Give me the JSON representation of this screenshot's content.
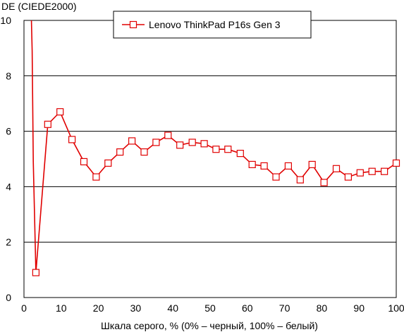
{
  "chart_data": {
    "type": "line",
    "title": "",
    "ylabel": "DE (CIEDE2000)",
    "xlabel": "Шкала серого, % (0% – черный, 100% – белый)",
    "xlim": [
      0,
      100
    ],
    "ylim": [
      0,
      10
    ],
    "xticks": [
      0,
      10,
      20,
      30,
      40,
      50,
      60,
      70,
      80,
      90,
      100
    ],
    "yticks": [
      0,
      2,
      4,
      6,
      8,
      10
    ],
    "grid": "horizontal",
    "legend_position": "top-center",
    "line_color": "#e00000",
    "series": [
      {
        "name": "Lenovo ThinkPad P16s Gen 3",
        "x": [
          3.2,
          6.4,
          9.7,
          12.9,
          16.1,
          19.4,
          22.6,
          25.8,
          29.0,
          32.3,
          35.5,
          38.7,
          41.9,
          45.2,
          48.4,
          51.6,
          54.8,
          58.1,
          61.3,
          64.5,
          67.7,
          71.0,
          74.2,
          77.4,
          80.6,
          83.9,
          87.1,
          90.3,
          93.5,
          96.8,
          100
        ],
        "y": [
          0.9,
          6.25,
          6.7,
          5.7,
          4.9,
          4.35,
          4.85,
          5.25,
          5.65,
          5.25,
          5.6,
          5.85,
          5.5,
          5.6,
          5.55,
          5.35,
          5.35,
          5.2,
          4.8,
          4.75,
          4.35,
          4.75,
          4.25,
          4.8,
          4.15,
          4.65,
          4.35,
          4.5,
          4.55,
          4.55,
          4.85
        ]
      }
    ]
  }
}
